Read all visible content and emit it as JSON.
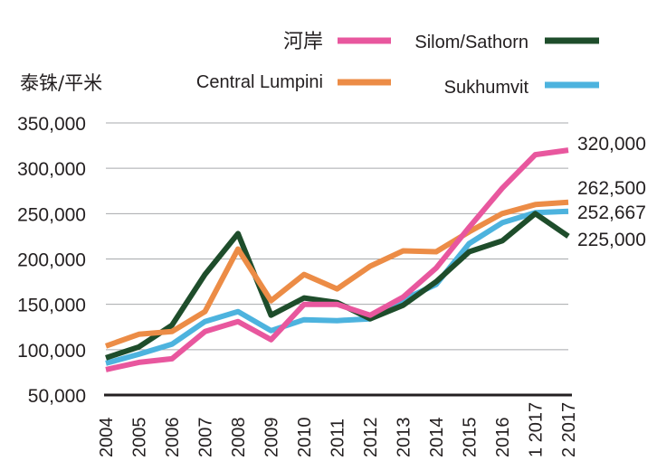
{
  "chart_data": {
    "type": "line",
    "ylabel": "泰铢/平米",
    "yticks": [
      "350,000",
      "300,000",
      "250,000",
      "200,000",
      "150,000",
      "100,000",
      "50,000"
    ],
    "ylim": [
      50000,
      350000
    ],
    "categories": [
      "2004",
      "2005",
      "2006",
      "2007",
      "2008",
      "2009",
      "2010",
      "2011",
      "2012",
      "2013",
      "2014",
      "2015",
      "2016",
      "1 2017",
      "2 2017"
    ],
    "grid": true,
    "legend_position": "top-right",
    "series": [
      {
        "name": "河岸",
        "color": "#e8579e",
        "values": [
          78000,
          86000,
          90000,
          120000,
          131000,
          111000,
          150000,
          150000,
          138000,
          158000,
          190000,
          235000,
          278000,
          315000,
          320000
        ],
        "end_label": "320,000"
      },
      {
        "name": "Central Lumpini",
        "color": "#ec8c46",
        "values": [
          104000,
          117000,
          120000,
          142000,
          211000,
          154000,
          183000,
          167000,
          192000,
          209000,
          208000,
          230000,
          250000,
          260000,
          262500
        ],
        "end_label": "262,500"
      },
      {
        "name": "Silom/Sathorn",
        "color": "#1e4d2b",
        "values": [
          91000,
          103000,
          127000,
          183000,
          228000,
          138000,
          157000,
          152000,
          134000,
          149000,
          175000,
          208000,
          220000,
          250000,
          225000
        ],
        "end_label": "225,000"
      },
      {
        "name": "Sukhumvit",
        "color": "#4db3de",
        "values": [
          85000,
          95000,
          106000,
          131000,
          142000,
          121000,
          133000,
          132000,
          134000,
          155000,
          172000,
          217000,
          240000,
          251000,
          252667
        ],
        "end_label": "252,667"
      }
    ]
  }
}
